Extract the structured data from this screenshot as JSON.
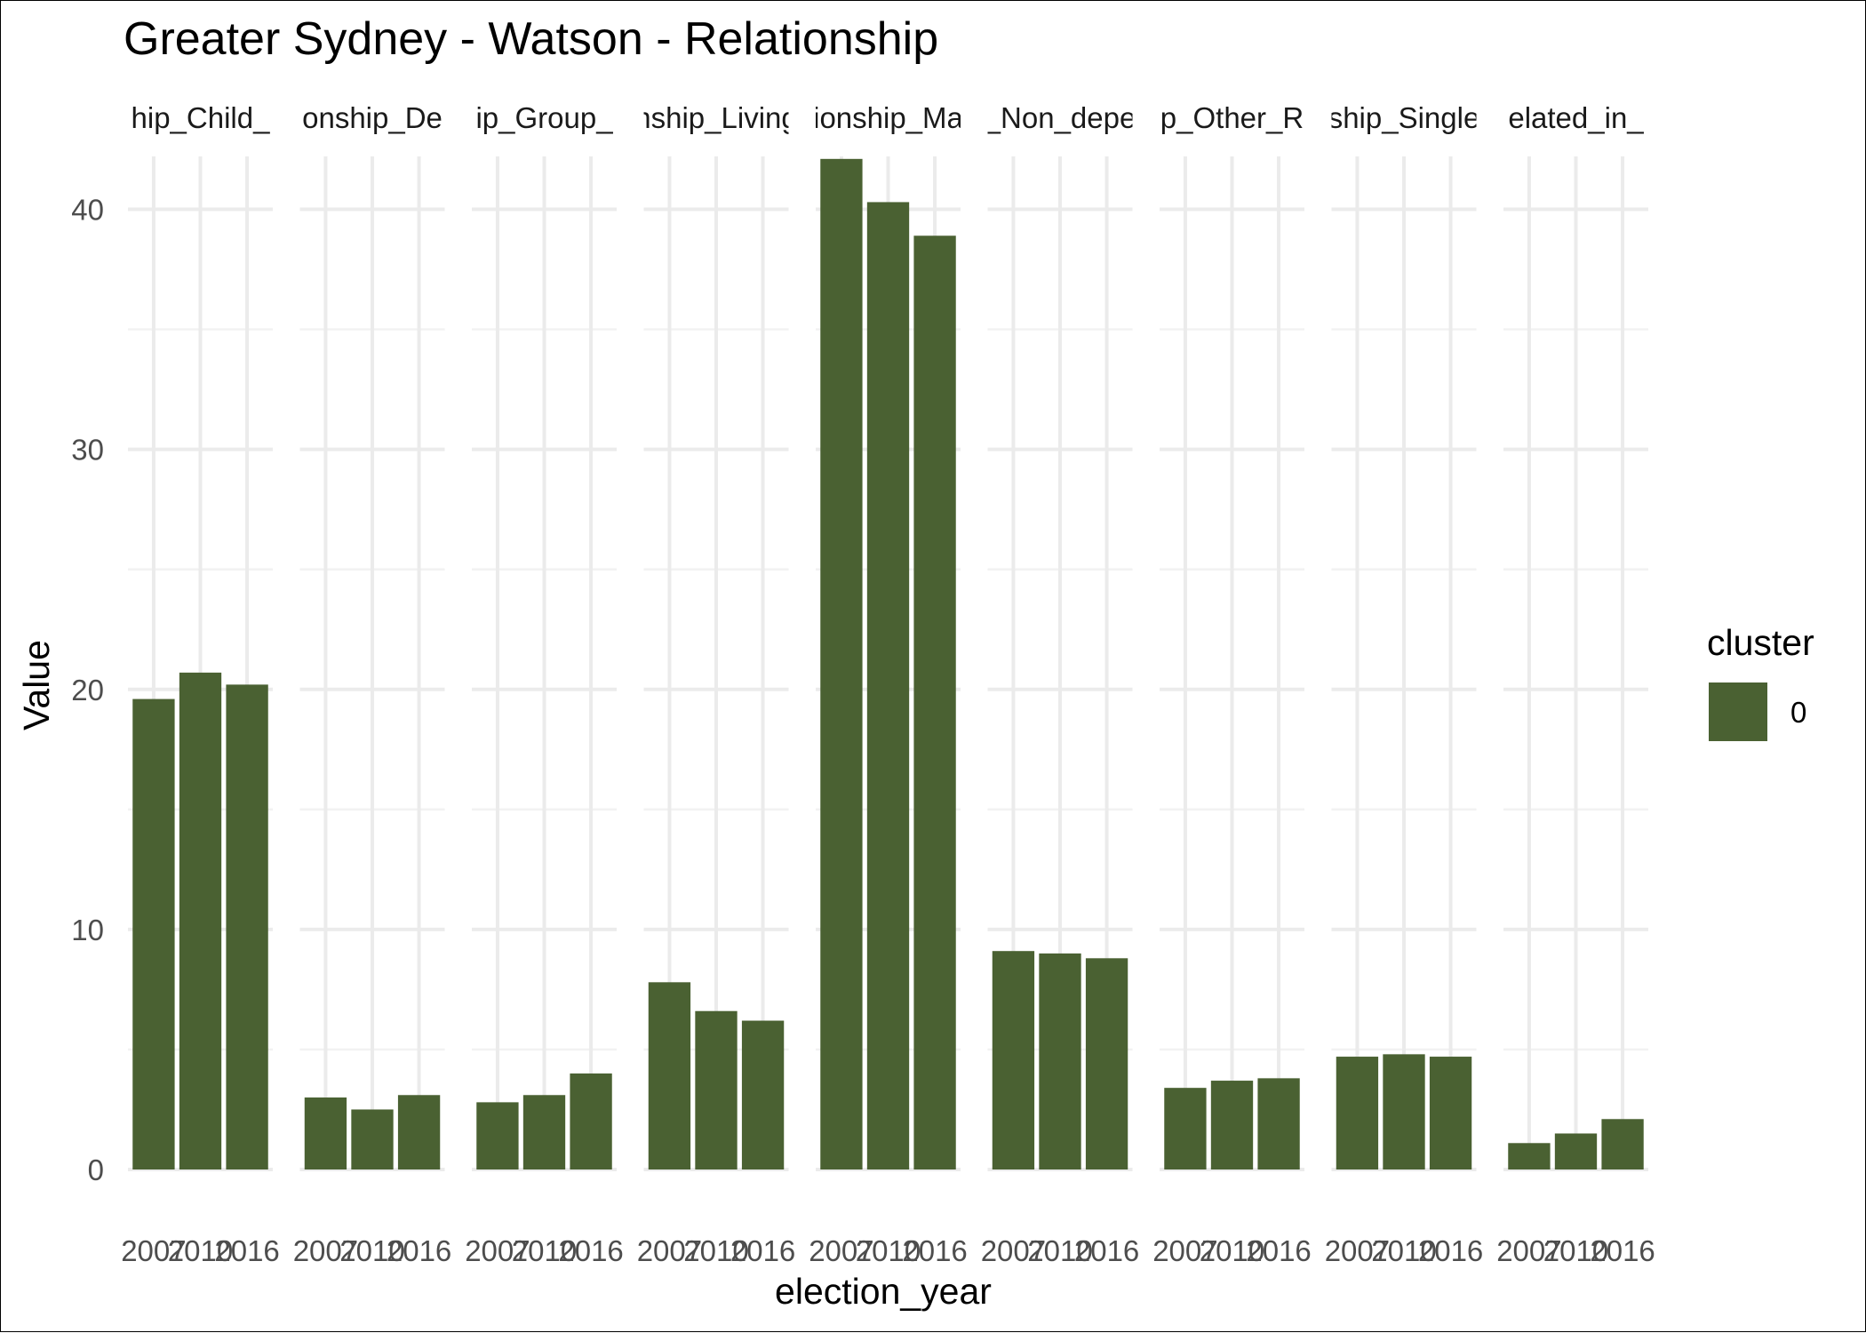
{
  "chart_data": {
    "type": "bar",
    "title": "Greater Sydney - Watson - Relationship",
    "xlabel": "election_year",
    "ylabel": "Value",
    "ylim": [
      0,
      43.5
    ],
    "yticks": [
      0,
      10,
      20,
      30,
      40
    ],
    "categories": [
      "2007",
      "2010",
      "2016"
    ],
    "grid": true,
    "bar_color": "#4a6132",
    "legend": {
      "title": "cluster",
      "entries": [
        "0"
      ],
      "position": "right"
    },
    "facets": [
      {
        "label": "hip_Child_",
        "values": [
          19.6,
          20.7,
          20.2
        ]
      },
      {
        "label": "onship_De",
        "values": [
          3.0,
          2.5,
          3.1
        ]
      },
      {
        "label": "ip_Group_",
        "values": [
          2.8,
          3.1,
          4.0
        ]
      },
      {
        "label": "nship_Living",
        "values": [
          7.8,
          6.6,
          6.2
        ]
      },
      {
        "label": "ionship_Ma",
        "values": [
          42.1,
          40.3,
          38.9
        ]
      },
      {
        "label": "_Non_depe",
        "values": [
          9.1,
          9.0,
          8.8
        ]
      },
      {
        "label": "p_Other_R",
        "values": [
          3.4,
          3.7,
          3.8
        ]
      },
      {
        "label": "ship_Single",
        "values": [
          4.7,
          4.8,
          4.7
        ]
      },
      {
        "label": "elated_in_",
        "values": [
          1.1,
          1.5,
          2.1
        ]
      }
    ],
    "series": [
      {
        "name": "0"
      }
    ]
  }
}
